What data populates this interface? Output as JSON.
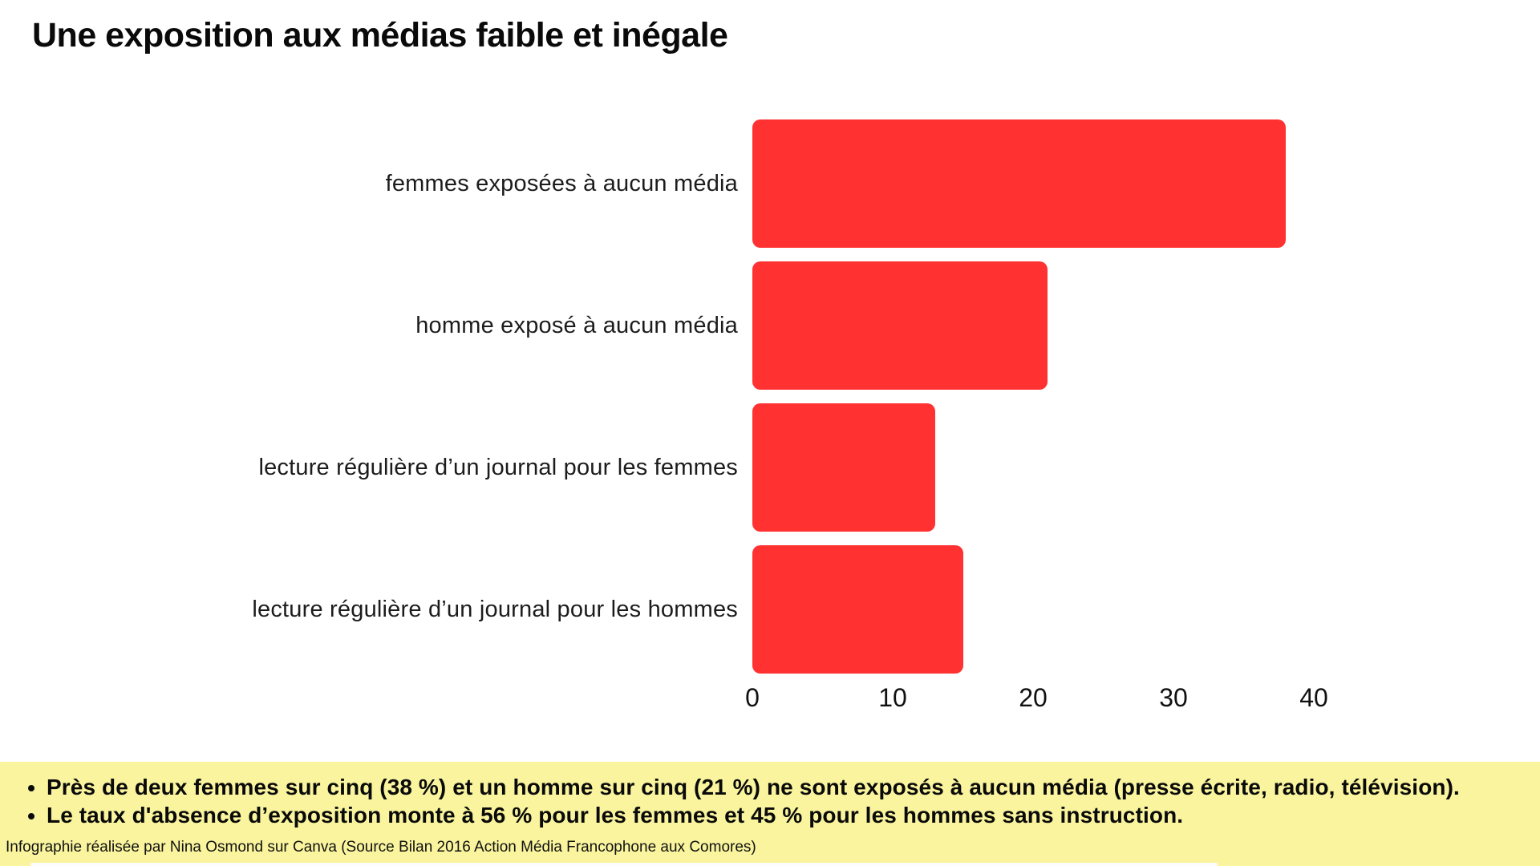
{
  "title": "Une exposition aux médias faible et inégale",
  "colors": {
    "bar": "#ff3131",
    "notes_background": "#f9f49d",
    "text": "#0a0a0a"
  },
  "chart_data": {
    "type": "bar",
    "orientation": "horizontal",
    "title": "Une exposition aux médias faible et inégale",
    "categories": [
      "femmes exposées à aucun média",
      "homme exposé à aucun média",
      "lecture régulière d’un journal pour les femmes",
      "lecture régulière d’un journal pour les hommes"
    ],
    "values": [
      38,
      21,
      13,
      15
    ],
    "unit": "%",
    "xlabel": "",
    "ylabel": "",
    "xlim": [
      0,
      40
    ],
    "x_ticks": [
      0,
      10,
      20,
      30,
      40
    ],
    "grid": false,
    "legend": false,
    "bar_color": "#ff3131"
  },
  "notes": {
    "bullets": [
      "Près de deux femmes sur cinq (38 %) et un homme sur cinq (21 %) ne sont exposés à aucun média (presse écrite, radio, télévision).",
      "Le taux d'absence d’exposition monte à 56 % pour les femmes et 45 % pour les hommes sans instruction."
    ],
    "credit": "Infographie réalisée par Nina Osmond sur Canva (Source Bilan 2016 Action Média Francophone aux Comores)"
  }
}
